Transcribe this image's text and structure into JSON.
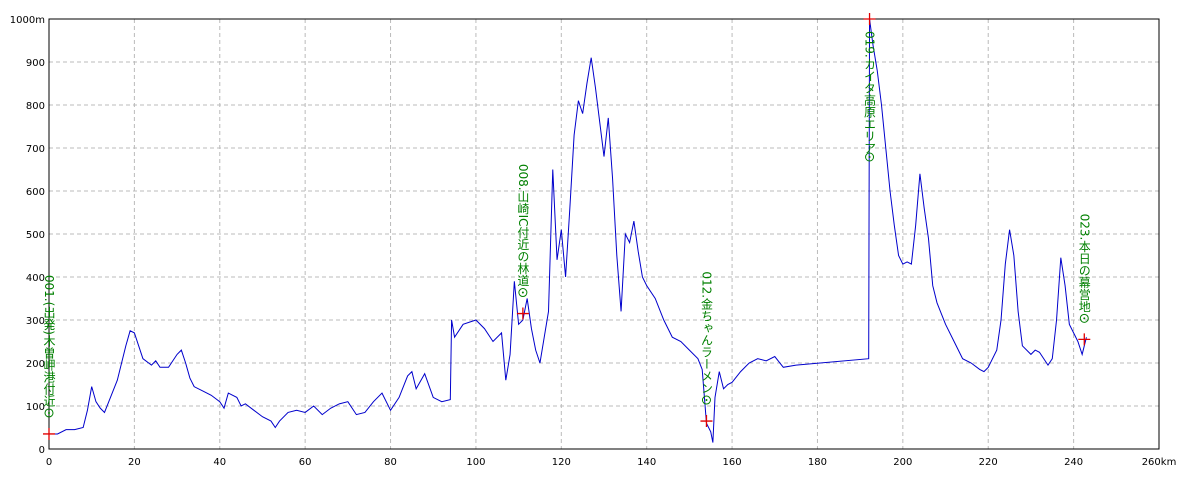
{
  "chart_data": {
    "type": "line",
    "x": [
      0,
      2,
      4,
      6,
      8,
      9,
      10,
      11,
      12,
      13,
      14,
      16,
      18,
      19,
      20,
      21,
      22,
      24,
      25,
      26,
      28,
      30,
      31,
      32,
      33,
      34,
      36,
      38,
      40,
      41,
      42,
      44,
      45,
      46,
      48,
      50,
      52,
      53,
      54,
      56,
      58,
      60,
      62,
      64,
      66,
      68,
      70,
      72,
      74,
      76,
      78,
      80,
      82,
      84,
      85,
      86,
      88,
      90,
      92,
      94,
      94.3,
      95,
      97,
      100,
      102,
      104,
      106,
      107,
      108,
      109,
      110,
      111,
      112,
      113,
      114,
      115,
      116,
      117,
      118,
      119,
      120,
      121,
      122,
      123,
      124,
      125,
      126,
      127,
      128,
      129,
      130,
      131,
      132,
      133,
      134,
      135,
      136,
      137,
      138,
      139,
      140,
      142,
      144,
      146,
      148,
      150,
      152,
      153,
      154,
      155,
      155.5,
      156,
      157,
      158,
      159,
      160,
      162,
      164,
      166,
      168,
      170,
      172,
      175,
      192,
      192.2,
      193,
      194,
      195,
      196,
      197,
      198,
      199,
      200,
      201,
      202,
      203,
      204,
      205,
      206,
      207,
      208,
      210,
      212,
      214,
      216,
      218,
      219,
      220,
      222,
      223,
      224,
      225,
      226,
      227,
      228,
      230,
      231,
      232,
      234,
      235,
      236,
      237,
      238,
      239,
      240,
      241,
      242,
      243
    ],
    "series": [
      {
        "color": "#0000cc",
        "values": [
          35,
          35,
          45,
          45,
          50,
          90,
          145,
          110,
          95,
          85,
          110,
          160,
          240,
          275,
          270,
          240,
          210,
          195,
          205,
          190,
          190,
          220,
          230,
          200,
          165,
          145,
          135,
          125,
          110,
          95,
          130,
          120,
          100,
          105,
          90,
          75,
          65,
          50,
          65,
          85,
          90,
          85,
          100,
          80,
          95,
          105,
          110,
          80,
          85,
          110,
          130,
          90,
          120,
          170,
          180,
          140,
          175,
          120,
          110,
          115,
          300,
          260,
          290,
          300,
          280,
          250,
          270,
          160,
          220,
          390,
          290,
          300,
          350,
          280,
          230,
          200,
          260,
          320,
          650,
          440,
          510,
          400,
          560,
          730,
          810,
          780,
          850,
          910,
          840,
          760,
          680,
          770,
          630,
          450,
          320,
          500,
          480,
          530,
          460,
          400,
          380,
          350,
          300,
          260,
          250,
          230,
          210,
          185,
          60,
          40,
          15,
          120,
          180,
          140,
          150,
          155,
          180,
          200,
          210,
          205,
          215,
          190,
          195,
          210,
          1000,
          940,
          880,
          800,
          700,
          600,
          520,
          450,
          430,
          435,
          430,
          520,
          640,
          560,
          490,
          380,
          340,
          290,
          250,
          210,
          200,
          185,
          180,
          190,
          230,
          300,
          430,
          510,
          450,
          320,
          240,
          220,
          230,
          225,
          195,
          210,
          300,
          445,
          380,
          290,
          270,
          250,
          220,
          260
        ]
      }
    ],
    "xlim": [
      0,
      260
    ],
    "ylim": [
      0,
      1000
    ],
    "xticks": [
      0,
      20,
      40,
      60,
      80,
      100,
      120,
      140,
      160,
      180,
      200,
      220,
      240,
      {
        "value": 260,
        "label": "260km"
      }
    ],
    "yticks": [
      0,
      100,
      200,
      300,
      400,
      500,
      600,
      700,
      800,
      900,
      {
        "value": 1000,
        "label": "1000m"
      }
    ],
    "grid": true,
    "waypoints": [
      {
        "label": "001.(出発)木曽岬港付近",
        "x": 0,
        "y": 35
      },
      {
        "label": "008.山崎IC付近の林道",
        "x": 111,
        "y": 315
      },
      {
        "label": "012.金ちゃんラーメン",
        "x": 154,
        "y": 65
      },
      {
        "label": "019.カイタ高原エリア",
        "x": 192.2,
        "y": 1000
      },
      {
        "label": "023.本日の幕営地",
        "x": 242.5,
        "y": 255
      }
    ]
  }
}
